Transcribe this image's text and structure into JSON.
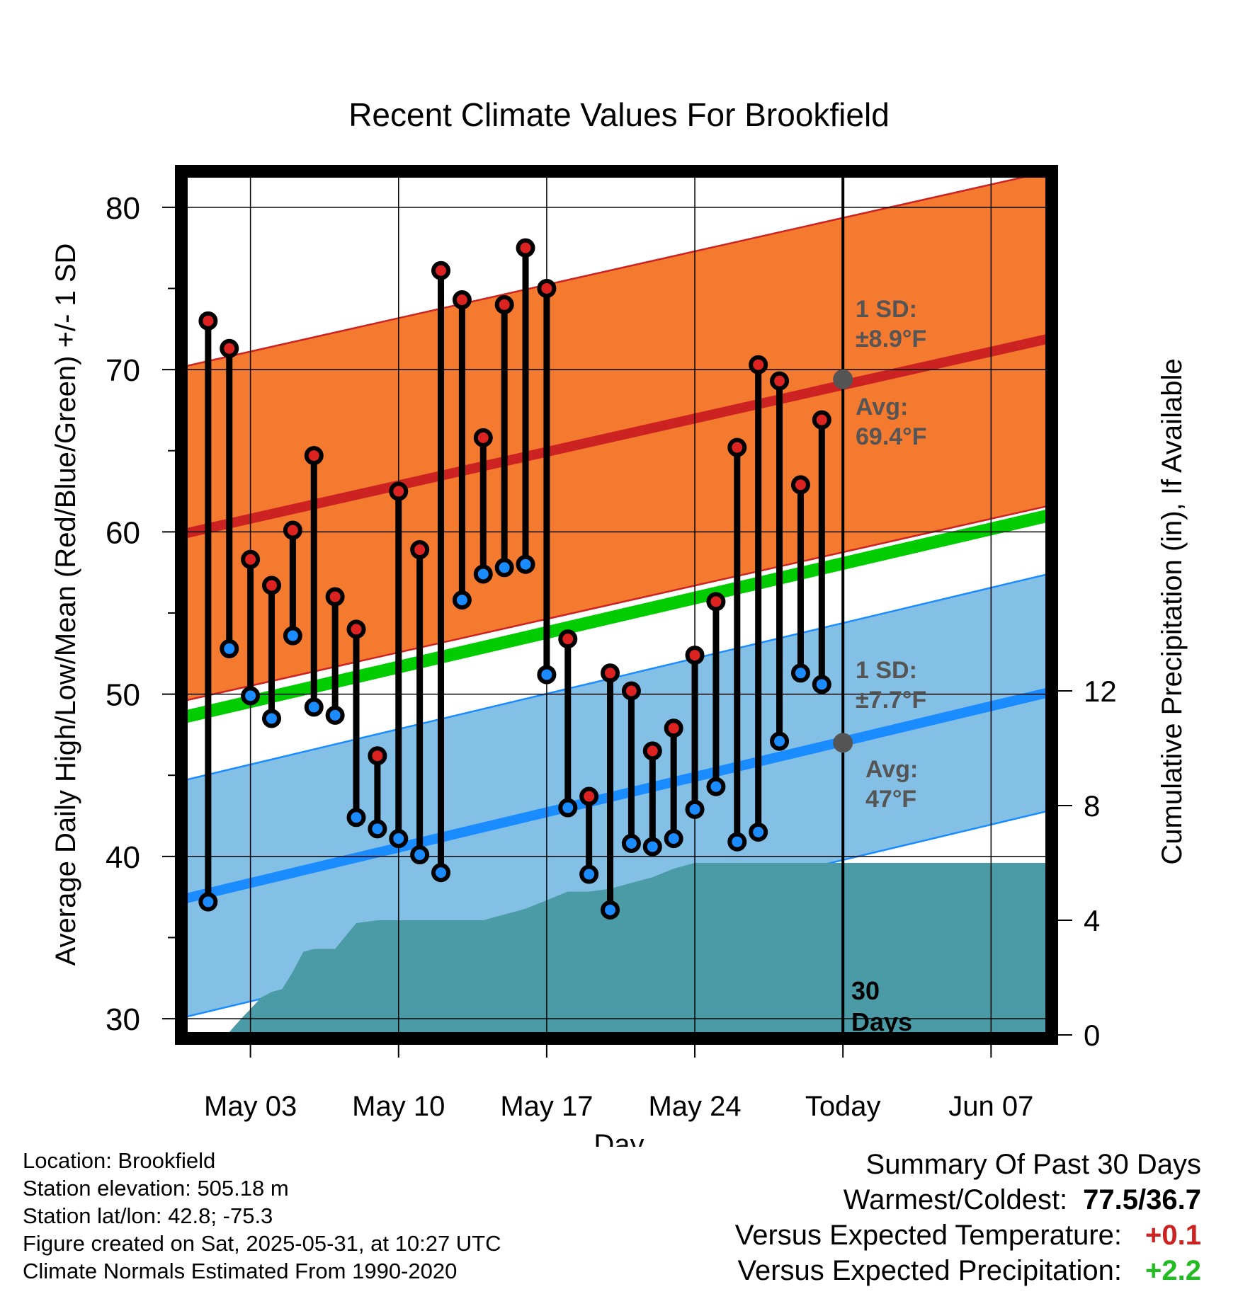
{
  "chart_data": {
    "type": "line",
    "title": "Recent Climate Values For Brookfield",
    "xlabel": "Day",
    "ylabel": "Average Daily High/Low/Mean (Red/Blue/Green) +/- 1 SD",
    "y2label": "Cumulative Precipitation (in), If Available",
    "ylim": [
      29,
      82
    ],
    "y2lim": [
      0,
      30
    ],
    "y_ticks": [
      "30",
      "40",
      "50",
      "60",
      "70",
      "80"
    ],
    "y2_ticks": [
      "0",
      "4",
      "8",
      "12"
    ],
    "x_ticks": [
      {
        "day": 3,
        "label": "May 03"
      },
      {
        "day": 10,
        "label": "May 10"
      },
      {
        "day": 17,
        "label": "May 17"
      },
      {
        "day": 24,
        "label": "May 24"
      },
      {
        "day": 31,
        "label": "Today"
      },
      {
        "day": 38,
        "label": "Jun 07"
      }
    ],
    "xlim_days": [
      -0.1,
      40.7
    ],
    "daily_temperatures": {
      "days": [
        1,
        2,
        3,
        4,
        5,
        6,
        7,
        8,
        9,
        10,
        11,
        12,
        13,
        14,
        15,
        16,
        17,
        18,
        19,
        20,
        21,
        22,
        23,
        24,
        25,
        26,
        27,
        28,
        29,
        30
      ],
      "high": [
        73.0,
        71.3,
        58.3,
        56.7,
        60.1,
        64.7,
        56.0,
        54.0,
        46.2,
        62.5,
        58.9,
        76.1,
        74.3,
        65.8,
        74.0,
        77.5,
        75.0,
        53.4,
        43.7,
        51.3,
        50.2,
        46.5,
        47.9,
        52.4,
        55.7,
        65.2,
        70.3,
        69.3,
        62.9,
        66.9
      ],
      "low": [
        37.2,
        52.8,
        49.9,
        48.5,
        53.6,
        49.2,
        48.7,
        42.4,
        41.7,
        41.1,
        40.1,
        39.0,
        55.8,
        57.4,
        57.8,
        58.0,
        51.2,
        43.0,
        38.9,
        36.7,
        40.8,
        40.6,
        41.1,
        42.9,
        44.3,
        40.9,
        41.5,
        47.1,
        51.3,
        50.6
      ]
    },
    "normal_high": {
      "start": 59.9,
      "end": 71.9,
      "sd_label": "1 SD:",
      "sd_value": "±8.9°F",
      "avg_label": "Avg:",
      "avg_value": "69.4°F",
      "today_value": 69.4,
      "color": "#cc2222",
      "band_color": "#f47a30"
    },
    "normal_low": {
      "start": 37.4,
      "end": 50.1,
      "sd_label": "1 SD:",
      "sd_value": "±7.7°F",
      "avg_label": "Avg:",
      "avg_value": "47°F",
      "today_value": 47.0,
      "color": "#1a8cff",
      "band_color": "#84c0e6"
    },
    "normal_mean": {
      "start": 48.6,
      "end": 61.0,
      "color": "#00cc00"
    },
    "high_sd": 10.3,
    "low_sd": 7.3,
    "precipitation_cumulative": {
      "days": [
        0,
        0.6,
        1.3,
        2.0,
        2.6,
        3.0,
        3.5,
        4.0,
        4.5,
        5.0,
        5.5,
        6.0,
        7.0,
        8.0,
        9.0,
        10.0,
        11.0,
        12.0,
        13.0,
        14.0,
        15.0,
        16.0,
        17.0,
        18.0,
        19.0,
        20.0,
        21.0,
        22.0,
        23.0,
        24.0,
        25.0,
        26.0,
        27.0,
        28.0,
        29.0,
        30.0,
        31.0,
        40.7
      ],
      "values": [
        0,
        0,
        0,
        0.1,
        0.6,
        0.9,
        1.3,
        1.5,
        1.6,
        2.2,
        2.9,
        3.0,
        3.0,
        3.9,
        4.0,
        4.0,
        4.0,
        4.0,
        4.0,
        4.0,
        4.2,
        4.4,
        4.7,
        5.0,
        5.0,
        5.1,
        5.3,
        5.5,
        5.8,
        6.0,
        6.0,
        6.0,
        6.0,
        6.0,
        6.0,
        6.0,
        6.0,
        6.0
      ],
      "color": "#4a9ba5"
    },
    "today_day": 31,
    "today_label_1": "30",
    "today_label_2": "Days"
  },
  "info": {
    "location": "Location: Brookfield",
    "elevation": "Station elevation: 505.18 m",
    "latlon": "Station lat/lon: 42.8; -75.3",
    "created": "Figure created on Sat, 2025-05-31, at 10:27 UTC",
    "normals": "Climate Normals Estimated From 1990-2020"
  },
  "summary": {
    "title": "Summary Of Past 30 Days",
    "warm_label": "Warmest/Coldest:",
    "warm_value": "77.5/36.7",
    "temp_label": "Versus Expected Temperature:",
    "temp_value": "+0.1",
    "temp_color": "#cc2222",
    "precip_label": "Versus Expected Precipitation:",
    "precip_value": "+2.2",
    "precip_color": "#22bb22"
  }
}
